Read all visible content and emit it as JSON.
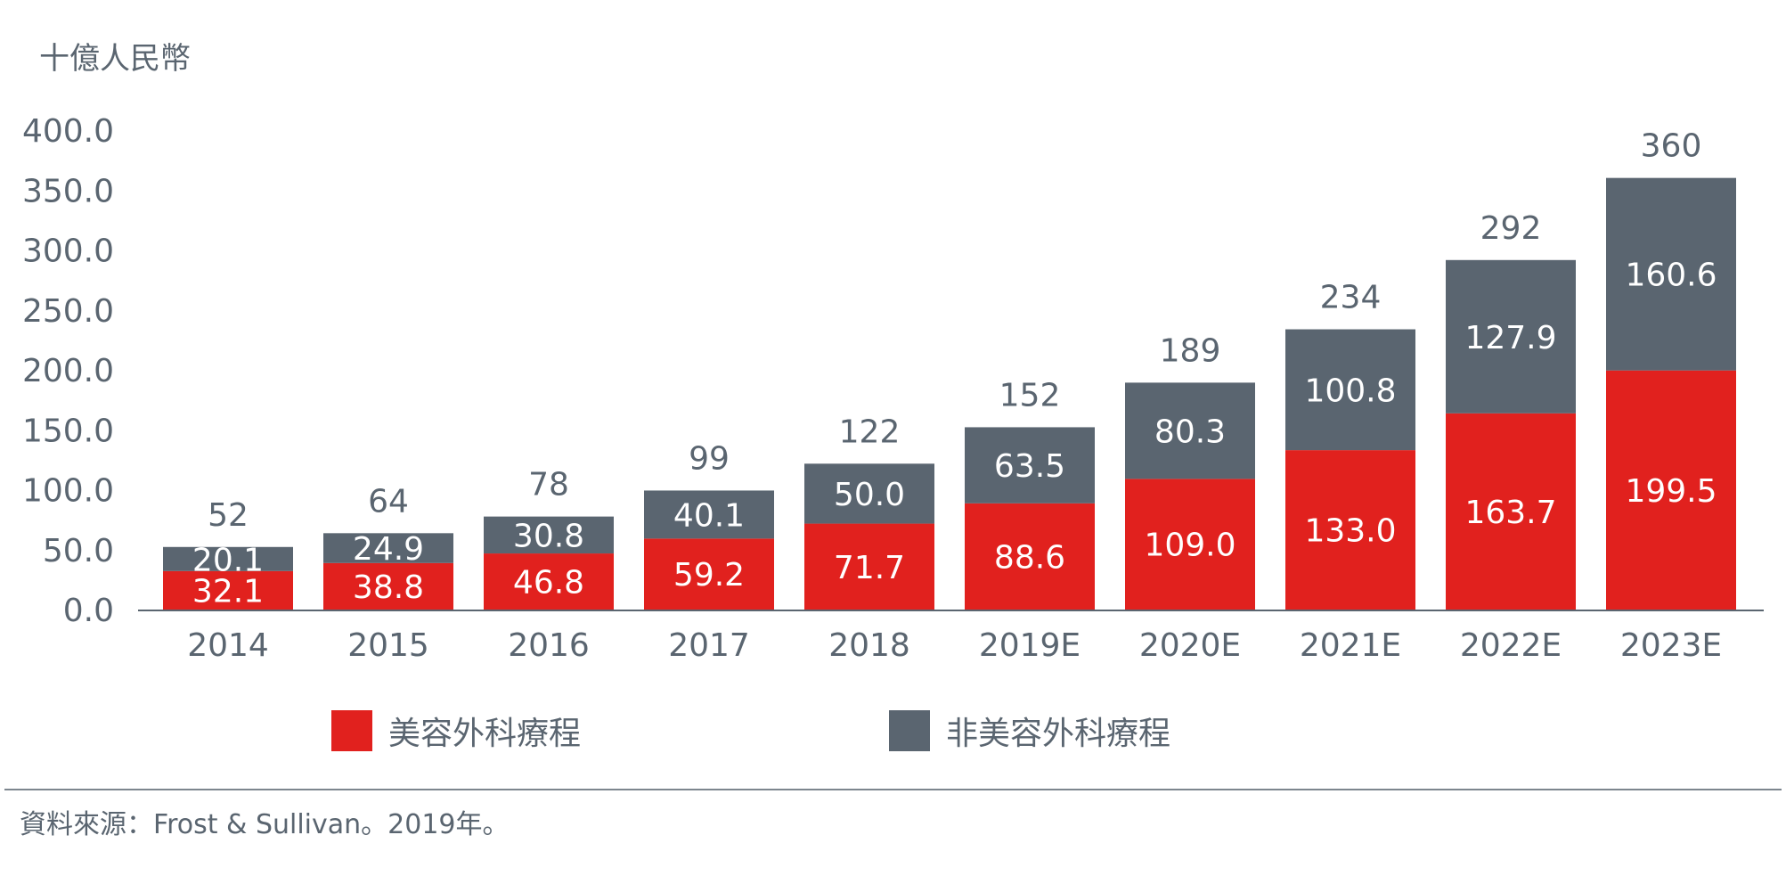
{
  "colors": {
    "cosmetic_surgery": "#e1211e",
    "non_surgical": "#5a6570",
    "text": "#5a6570",
    "axis": "#5a6570"
  },
  "unit_label": "十億人民幣",
  "legend": [
    {
      "label": "美容外科療程",
      "color": "#e1211e"
    },
    {
      "label": "非美容外科療程",
      "color": "#5a6570"
    }
  ],
  "source": "資料來源：Frost & Sullivan。2019年。",
  "chart_data": {
    "type": "bar",
    "stacked": true,
    "categories": [
      "2014",
      "2015",
      "2016",
      "2017",
      "2018",
      "2019E",
      "2020E",
      "2021E",
      "2022E",
      "2023E"
    ],
    "series": [
      {
        "name": "美容外科療程",
        "values": [
          32.1,
          38.8,
          46.8,
          59.2,
          71.7,
          88.6,
          109.0,
          133.0,
          163.7,
          199.5
        ]
      },
      {
        "name": "非美容外科療程",
        "values": [
          20.1,
          24.9,
          30.8,
          40.1,
          50.0,
          63.5,
          80.3,
          100.8,
          127.9,
          160.6
        ]
      }
    ],
    "segment_labels": {
      "美容外科療程": [
        "32.1",
        "38.8",
        "46.8",
        "59.2",
        "71.7",
        "88.6",
        "109.0",
        "133.0",
        "163.7",
        "199.5"
      ],
      "非美容外科療程": [
        "20.1",
        "24.9",
        "30.8",
        "40.1",
        "50.0",
        "63.5",
        "80.3",
        "100.8",
        "127.9",
        "160.6"
      ]
    },
    "totals": [
      "52",
      "64",
      "78",
      "99",
      "122",
      "152",
      "189",
      "234",
      "292",
      "360"
    ],
    "yticks": [
      0,
      50,
      100,
      150,
      200,
      250,
      300,
      350,
      400
    ],
    "ytick_labels": [
      "0.0",
      "50.0",
      "100.0",
      "150.0",
      "200.0",
      "250.0",
      "300.0",
      "350.0",
      "400.0"
    ],
    "ylim": [
      0,
      400
    ],
    "ylabel": "十億人民幣",
    "xlabel": "",
    "grid": false,
    "legend_position": "bottom"
  }
}
